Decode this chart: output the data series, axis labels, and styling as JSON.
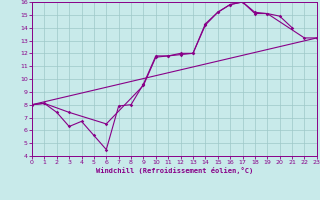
{
  "xlabel": "Windchill (Refroidissement éolien,°C)",
  "xlim": [
    0,
    23
  ],
  "ylim": [
    4,
    16
  ],
  "xticks": [
    0,
    1,
    2,
    3,
    4,
    5,
    6,
    7,
    8,
    9,
    10,
    11,
    12,
    13,
    14,
    15,
    16,
    17,
    18,
    19,
    20,
    21,
    22,
    23
  ],
  "yticks": [
    4,
    5,
    6,
    7,
    8,
    9,
    10,
    11,
    12,
    13,
    14,
    15,
    16
  ],
  "bg_color": "#c8eaea",
  "line_color": "#880088",
  "grid_color": "#9ec8c8",
  "curve1_x": [
    0,
    1,
    2,
    3,
    4,
    5,
    6,
    7,
    8,
    9,
    10,
    11,
    12,
    13,
    14,
    15,
    16,
    17,
    18,
    19,
    20,
    21
  ],
  "curve1_y": [
    8.0,
    8.1,
    7.4,
    6.3,
    6.7,
    5.6,
    4.5,
    7.9,
    8.0,
    9.6,
    11.8,
    11.8,
    12.0,
    12.0,
    14.3,
    15.2,
    15.8,
    16.0,
    15.1,
    15.1,
    14.9,
    14.0
  ],
  "curve2_x": [
    0,
    1,
    3,
    6,
    9,
    10,
    11,
    12,
    13,
    14,
    15,
    16,
    17,
    18,
    19,
    22,
    23
  ],
  "curve2_y": [
    8.0,
    8.1,
    7.4,
    6.5,
    9.5,
    11.7,
    11.8,
    11.9,
    12.0,
    14.2,
    15.2,
    15.8,
    16.0,
    15.2,
    15.1,
    13.2,
    13.2
  ],
  "curve3_x": [
    0,
    23
  ],
  "curve3_y": [
    8.0,
    13.2
  ]
}
